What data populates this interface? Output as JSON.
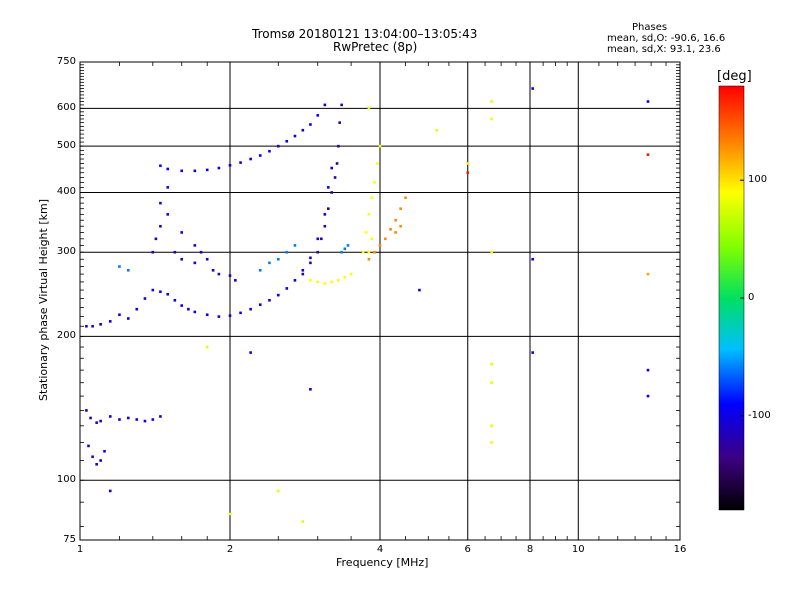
{
  "chart_data": {
    "type": "scatter",
    "title": "Tromsø 20180121 13:04:00–13:05:43",
    "subtitle": "RwPretec (8p)",
    "xlabel": "Frequency [MHz]",
    "ylabel": "Stationary phase Virtual Height [km]",
    "x_scale": "log",
    "y_scale": "log",
    "xlim": [
      1,
      16
    ],
    "ylim": [
      75,
      750
    ],
    "x_ticks": [
      1,
      2,
      4,
      6,
      8,
      10,
      16
    ],
    "x_tick_labels": [
      "1",
      "2",
      "4",
      "6",
      "8",
      "10",
      "16"
    ],
    "y_ticks": [
      75,
      100,
      200,
      300,
      400,
      500,
      600,
      750
    ],
    "y_tick_labels": [
      "75",
      "100",
      "200",
      "300",
      "400",
      "500",
      "600",
      "750"
    ],
    "grid": true,
    "stats": {
      "heading": "Phases",
      "line_o": "mean, sd,O: -90.6, 16.6",
      "line_x": "mean, sd,X:  93.1, 23.6"
    },
    "colorbar": {
      "label": "[deg]",
      "min": -180,
      "max": 180,
      "ticks": [
        -100,
        0,
        100
      ],
      "tick_labels": [
        "-100",
        "0",
        "100"
      ]
    },
    "series": [
      {
        "phase": -100,
        "points": [
          [
            1.03,
            210
          ],
          [
            1.06,
            210
          ],
          [
            1.1,
            212
          ],
          [
            1.15,
            215
          ],
          [
            1.2,
            222
          ],
          [
            1.25,
            218
          ],
          [
            1.3,
            228
          ],
          [
            1.35,
            240
          ],
          [
            1.4,
            250
          ],
          [
            1.45,
            248
          ],
          [
            1.5,
            245
          ],
          [
            1.55,
            238
          ],
          [
            1.6,
            232
          ],
          [
            1.65,
            228
          ],
          [
            1.7,
            225
          ],
          [
            1.8,
            222
          ],
          [
            1.9,
            220
          ],
          [
            2.0,
            221
          ],
          [
            2.1,
            224
          ],
          [
            2.2,
            228
          ],
          [
            2.3,
            233
          ],
          [
            2.4,
            238
          ],
          [
            2.5,
            244
          ],
          [
            2.6,
            252
          ],
          [
            2.7,
            262
          ],
          [
            2.8,
            275
          ],
          [
            2.9,
            292
          ],
          [
            3.0,
            320
          ],
          [
            3.1,
            360
          ],
          [
            3.15,
            410
          ],
          [
            3.2,
            450
          ]
        ]
      },
      {
        "phase": -95,
        "points": [
          [
            1.45,
            455
          ],
          [
            1.5,
            448
          ],
          [
            1.6,
            444
          ],
          [
            1.7,
            444
          ],
          [
            1.8,
            446
          ],
          [
            1.9,
            450
          ],
          [
            2.0,
            456
          ],
          [
            2.1,
            462
          ],
          [
            2.2,
            470
          ],
          [
            2.3,
            478
          ],
          [
            2.4,
            488
          ],
          [
            2.5,
            500
          ],
          [
            2.6,
            512
          ],
          [
            2.7,
            525
          ],
          [
            2.8,
            540
          ],
          [
            2.9,
            555
          ],
          [
            3.0,
            580
          ],
          [
            3.1,
            610
          ]
        ]
      },
      {
        "phase": -105,
        "points": [
          [
            1.03,
            140
          ],
          [
            1.05,
            135
          ],
          [
            1.08,
            132
          ],
          [
            1.1,
            133
          ],
          [
            1.15,
            136
          ],
          [
            1.2,
            134
          ],
          [
            1.25,
            135
          ],
          [
            1.3,
            134
          ],
          [
            1.35,
            133
          ],
          [
            1.4,
            134
          ],
          [
            1.45,
            136
          ],
          [
            1.04,
            118
          ],
          [
            1.06,
            112
          ],
          [
            1.08,
            108
          ],
          [
            1.1,
            110
          ],
          [
            1.12,
            115
          ]
        ]
      },
      {
        "phase": -110,
        "points": [
          [
            1.4,
            300
          ],
          [
            1.42,
            320
          ],
          [
            1.45,
            340
          ],
          [
            1.5,
            360
          ],
          [
            1.55,
            300
          ],
          [
            1.6,
            290
          ],
          [
            1.7,
            285
          ],
          [
            1.75,
            300
          ],
          [
            1.8,
            290
          ],
          [
            1.85,
            275
          ],
          [
            1.9,
            270
          ],
          [
            2.0,
            268
          ],
          [
            2.05,
            262
          ],
          [
            1.45,
            380
          ],
          [
            1.5,
            410
          ],
          [
            1.6,
            330
          ],
          [
            1.7,
            310
          ]
        ]
      },
      {
        "phase": -125,
        "points": [
          [
            2.8,
            270
          ],
          [
            2.9,
            285
          ],
          [
            3.0,
            300
          ],
          [
            3.05,
            320
          ],
          [
            3.1,
            340
          ],
          [
            3.15,
            370
          ],
          [
            3.2,
            400
          ],
          [
            3.25,
            430
          ],
          [
            3.28,
            460
          ],
          [
            3.3,
            500
          ],
          [
            3.32,
            560
          ],
          [
            3.35,
            610
          ]
        ]
      },
      {
        "phase": -60,
        "points": [
          [
            2.3,
            275
          ],
          [
            2.4,
            285
          ],
          [
            2.5,
            290
          ],
          [
            2.6,
            300
          ],
          [
            2.7,
            310
          ],
          [
            1.2,
            280
          ],
          [
            1.25,
            275
          ],
          [
            3.35,
            300
          ],
          [
            3.4,
            305
          ],
          [
            3.45,
            310
          ]
        ]
      },
      {
        "phase": 90,
        "points": [
          [
            2.9,
            262
          ],
          [
            3.0,
            260
          ],
          [
            3.1,
            258
          ],
          [
            3.2,
            260
          ],
          [
            3.3,
            262
          ],
          [
            3.4,
            266
          ],
          [
            3.5,
            270
          ],
          [
            3.7,
            300
          ],
          [
            3.75,
            330
          ],
          [
            3.8,
            360
          ],
          [
            3.85,
            390
          ],
          [
            3.9,
            420
          ],
          [
            3.95,
            460
          ],
          [
            4.0,
            500
          ],
          [
            3.8,
            300
          ],
          [
            3.85,
            320
          ]
        ]
      },
      {
        "phase": 130,
        "points": [
          [
            3.8,
            290
          ],
          [
            3.9,
            300
          ],
          [
            4.0,
            310
          ],
          [
            4.1,
            320
          ],
          [
            4.2,
            335
          ],
          [
            4.3,
            350
          ],
          [
            4.4,
            370
          ],
          [
            4.5,
            390
          ],
          [
            4.3,
            330
          ],
          [
            4.4,
            340
          ]
        ]
      },
      {
        "phase": 80,
        "points": [
          [
            6.7,
            620
          ],
          [
            6.7,
            570
          ],
          [
            6.7,
            175
          ],
          [
            6.7,
            160
          ],
          [
            6.7,
            130
          ],
          [
            6.7,
            120
          ],
          [
            6.7,
            300
          ],
          [
            6.0,
            460
          ],
          [
            5.2,
            540
          ],
          [
            3.8,
            600
          ],
          [
            2.5,
            95
          ],
          [
            2.0,
            85
          ],
          [
            2.8,
            82
          ],
          [
            1.8,
            190
          ]
        ]
      },
      {
        "phase": -100,
        "points": [
          [
            8.1,
            660
          ],
          [
            8.1,
            290
          ],
          [
            8.1,
            185
          ],
          [
            13.8,
            620
          ],
          [
            13.8,
            170
          ],
          [
            13.8,
            150
          ],
          [
            2.2,
            185
          ],
          [
            2.9,
            155
          ],
          [
            4.8,
            250
          ],
          [
            1.15,
            95
          ]
        ]
      },
      {
        "phase": 170,
        "points": [
          [
            13.8,
            480
          ],
          [
            6.0,
            440
          ]
        ]
      },
      {
        "phase": 120,
        "points": [
          [
            13.8,
            270
          ]
        ]
      }
    ]
  }
}
